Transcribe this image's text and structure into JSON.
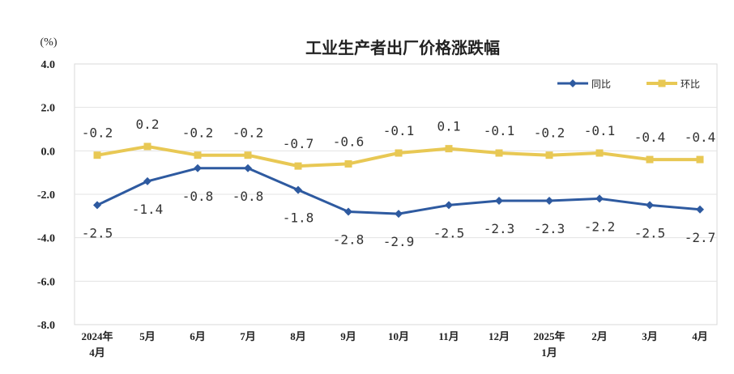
{
  "chart_data": {
    "type": "line",
    "title": "工业生产者出厂价格涨跌幅",
    "unit": "(%)",
    "categories": [
      [
        "2024年",
        "4月"
      ],
      [
        "5月"
      ],
      [
        "6月"
      ],
      [
        "7月"
      ],
      [
        "8月"
      ],
      [
        "9月"
      ],
      [
        "10月"
      ],
      [
        "11月"
      ],
      [
        "12月"
      ],
      [
        "2025年",
        "1月"
      ],
      [
        "2月"
      ],
      [
        "3月"
      ],
      [
        "4月"
      ]
    ],
    "yticks": [
      "4.0",
      "2.0",
      "0.0",
      "-2.0",
      "-4.0",
      "-6.0",
      "-8.0"
    ],
    "ylim": [
      -8,
      4
    ],
    "grid": true,
    "legend_position": "top-right",
    "series": [
      {
        "name": "同比",
        "color": "#2E5AA0",
        "marker": "diamond",
        "values": [
          -2.5,
          -1.4,
          -0.8,
          -0.8,
          -1.8,
          -2.8,
          -2.9,
          -2.5,
          -2.3,
          -2.3,
          -2.2,
          -2.5,
          -2.7
        ],
        "labels": [
          "-2.5",
          "-1.4",
          "-0.8",
          "-0.8",
          "-1.8",
          "-2.8",
          "-2.9",
          "-2.5",
          "-2.3",
          "-2.3",
          "-2.2",
          "-2.5",
          "-2.7"
        ],
        "label_position": "below"
      },
      {
        "name": "环比",
        "color": "#E8C854",
        "marker": "square",
        "values": [
          -0.2,
          0.2,
          -0.2,
          -0.2,
          -0.7,
          -0.6,
          -0.1,
          0.1,
          -0.1,
          -0.2,
          -0.1,
          -0.4,
          -0.4
        ],
        "labels": [
          "-0.2",
          "0.2",
          "-0.2",
          "-0.2",
          "-0.7",
          "-0.6",
          "-0.1",
          "0.1",
          "-0.1",
          "-0.2",
          "-0.1",
          "-0.4",
          "-0.4"
        ],
        "label_position": "above"
      }
    ]
  }
}
